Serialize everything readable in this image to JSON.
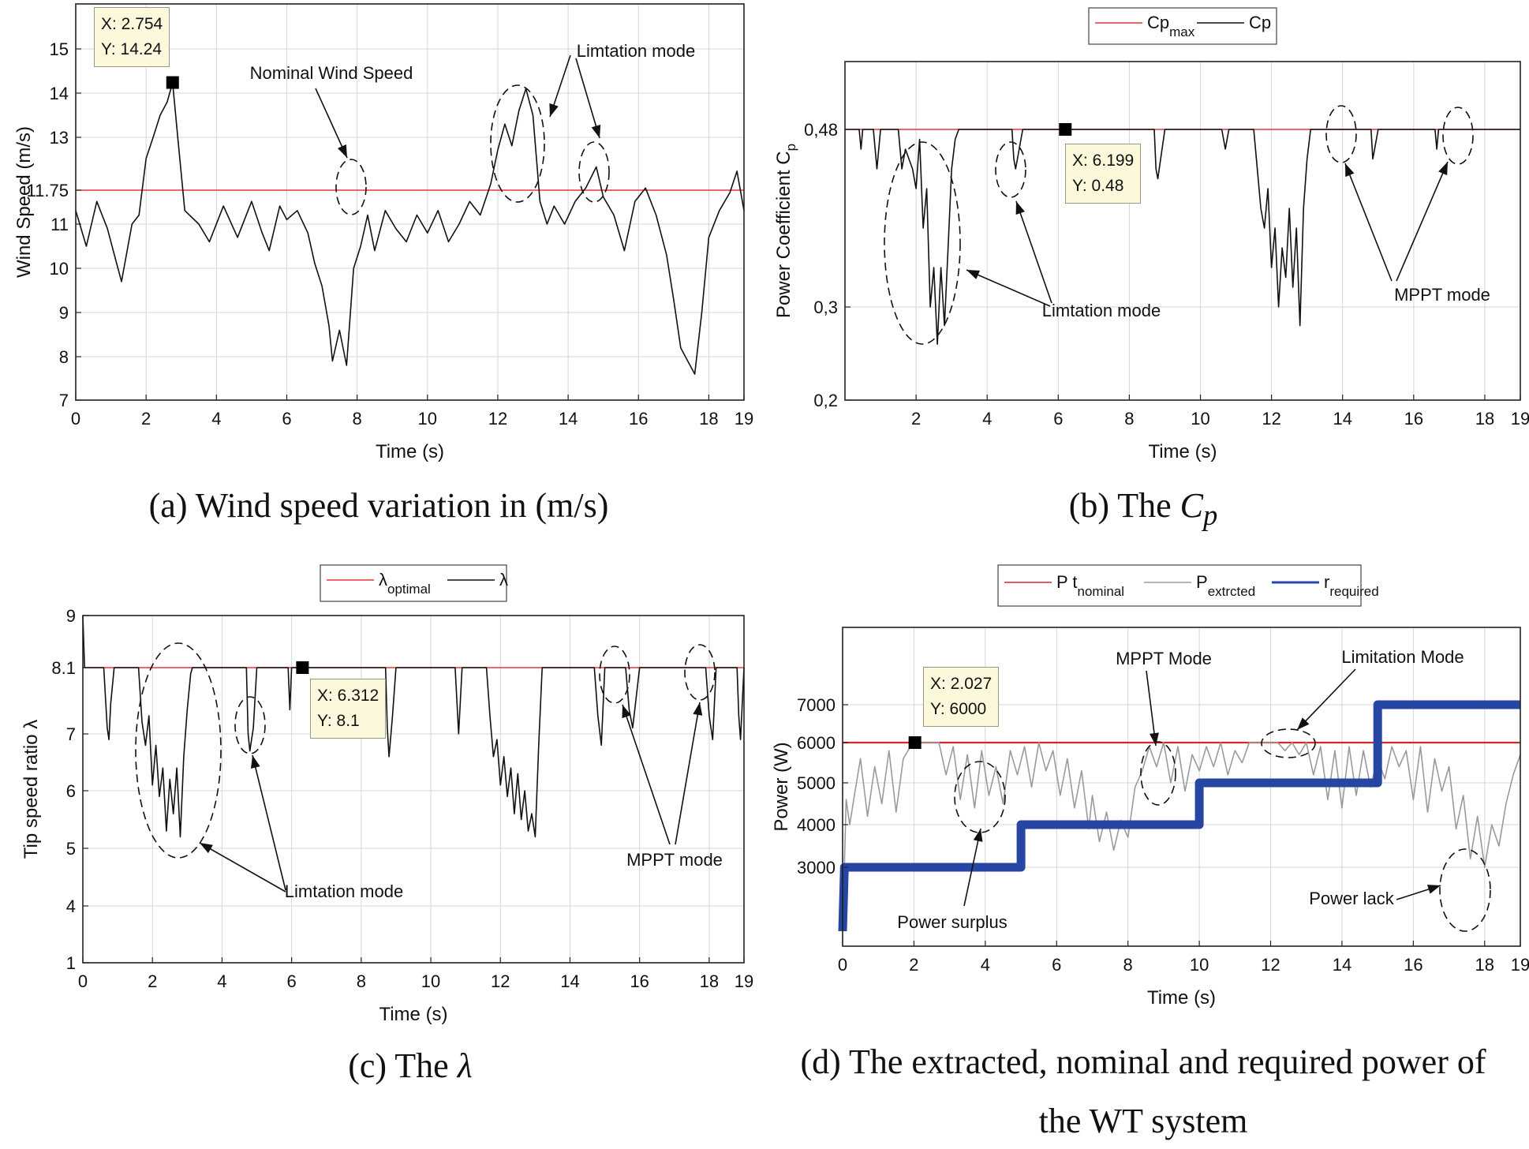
{
  "chart_data": [
    {
      "id": "a",
      "type": "line",
      "caption": "(a) Wind speed variation in (m/s)",
      "xlabel": "Time (s)",
      "ylabel": "Wind Speed (m/s)",
      "xlim": [
        0,
        19
      ],
      "ylim": [
        7,
        16
      ],
      "xticks": [
        "0",
        "2",
        "4",
        "6",
        "8",
        "10",
        "12",
        "14",
        "16",
        "18",
        "19"
      ],
      "yticks": [
        "7",
        "8",
        "9",
        "10",
        "11",
        "11.75",
        "13",
        "14",
        "15"
      ],
      "grid": true,
      "series": [
        {
          "color": "#e8373b",
          "x": [
            0,
            19
          ],
          "y": [
            11.75,
            11.75
          ]
        },
        {
          "color": "#111111",
          "x": [
            0,
            0.3,
            0.6,
            0.9,
            1.2,
            1.3,
            1.6,
            1.8,
            2.0,
            2.2,
            2.4,
            2.6,
            2.754,
            2.9,
            3.1,
            3.5,
            3.8,
            4.2,
            4.6,
            5.0,
            5.3,
            5.5,
            5.8,
            6.0,
            6.3,
            6.6,
            6.8,
            7.0,
            7.2,
            7.3,
            7.5,
            7.7,
            7.9,
            8.1,
            8.3,
            8.5,
            8.8,
            9.1,
            9.4,
            9.7,
            10.0,
            10.3,
            10.6,
            10.9,
            11.2,
            11.5,
            11.8,
            12.0,
            12.2,
            12.4,
            12.6,
            12.8,
            13.0,
            13.2,
            13.4,
            13.6,
            13.9,
            14.2,
            14.5,
            14.8,
            15.0,
            15.3,
            15.6,
            15.9,
            16.2,
            16.5,
            16.8,
            17.0,
            17.2,
            17.4,
            17.6,
            17.8,
            18.0,
            18.3,
            18.6,
            18.8,
            19.0
          ],
          "y": [
            11.3,
            10.5,
            11.5,
            10.9,
            10.0,
            9.7,
            11.0,
            11.2,
            12.5,
            13.0,
            13.5,
            13.8,
            14.24,
            13.0,
            11.3,
            11.0,
            10.6,
            11.4,
            10.7,
            11.5,
            10.8,
            10.4,
            11.4,
            11.1,
            11.3,
            10.8,
            10.1,
            9.6,
            8.7,
            7.9,
            8.6,
            7.8,
            10.0,
            10.5,
            11.2,
            10.4,
            11.3,
            10.9,
            10.6,
            11.2,
            10.8,
            11.3,
            10.6,
            11.0,
            11.5,
            11.2,
            11.9,
            12.7,
            13.3,
            12.8,
            13.6,
            14.1,
            13.5,
            11.5,
            11.0,
            11.4,
            11.0,
            11.5,
            11.8,
            12.3,
            11.6,
            11.2,
            10.4,
            11.5,
            11.8,
            11.2,
            10.3,
            9.3,
            8.2,
            7.9,
            7.6,
            9.0,
            10.7,
            11.3,
            11.7,
            12.2,
            11.3
          ]
        }
      ],
      "annotations": [
        "Nominal Wind Speed",
        "Limtation mode"
      ],
      "datatip": {
        "x": 2.754,
        "y": 14.24,
        "line1": "X: 2.754",
        "line2": "Y: 14.24"
      }
    },
    {
      "id": "b",
      "type": "line",
      "caption_text": "(b) The ",
      "caption_sym": "C",
      "caption_sub": "p",
      "xlabel": "Time (s)",
      "ylabel": "Power Coefficient C",
      "ylabel_sub": "p",
      "xlim": [
        0,
        19
      ],
      "ylim": [
        0.2,
        0.53
      ],
      "xticks": [
        "2",
        "4",
        "6",
        "8",
        "10",
        "12",
        "14",
        "16",
        "18",
        "19"
      ],
      "yticks": [
        "0,2",
        "0,3",
        "0,48"
      ],
      "grid": true,
      "legend": [
        {
          "label": "Cp",
          "sub": "max",
          "color": "#e8373b"
        },
        {
          "label": "Cp",
          "sub": "",
          "color": "#111111"
        }
      ],
      "legend_position": "top",
      "series": [
        {
          "color": "#e8373b",
          "x": [
            0,
            19
          ],
          "y": [
            0.48,
            0.48
          ]
        },
        {
          "color": "#111111",
          "x": [
            0,
            0.4,
            0.45,
            0.5,
            0.6,
            0.8,
            0.9,
            1.0,
            1.5,
            1.6,
            1.7,
            1.9,
            2.0,
            2.1,
            2.2,
            2.3,
            2.4,
            2.5,
            2.6,
            2.7,
            2.8,
            2.9,
            3.0,
            3.1,
            3.2,
            4.0,
            4.7,
            4.75,
            4.8,
            4.9,
            5.0,
            5.1,
            6.2,
            8.7,
            8.75,
            8.8,
            9.0,
            9.1,
            10.6,
            10.7,
            10.8,
            11.5,
            11.6,
            11.7,
            11.8,
            11.9,
            12.0,
            12.1,
            12.2,
            12.3,
            12.4,
            12.5,
            12.6,
            12.7,
            12.8,
            12.9,
            13.0,
            13.1,
            13.2,
            13.5,
            14.8,
            14.85,
            14.9,
            15.0,
            15.1,
            16.6,
            16.65,
            16.7,
            19
          ],
          "y": [
            0.48,
            0.48,
            0.46,
            0.48,
            0.48,
            0.48,
            0.44,
            0.48,
            0.48,
            0.44,
            0.46,
            0.44,
            0.42,
            0.47,
            0.38,
            0.42,
            0.3,
            0.34,
            0.26,
            0.34,
            0.28,
            0.36,
            0.44,
            0.47,
            0.48,
            0.48,
            0.48,
            0.45,
            0.44,
            0.46,
            0.48,
            0.48,
            0.48,
            0.48,
            0.44,
            0.43,
            0.48,
            0.48,
            0.48,
            0.46,
            0.48,
            0.48,
            0.44,
            0.4,
            0.38,
            0.42,
            0.34,
            0.38,
            0.3,
            0.36,
            0.33,
            0.4,
            0.32,
            0.38,
            0.28,
            0.4,
            0.45,
            0.48,
            0.48,
            0.48,
            0.48,
            0.45,
            0.46,
            0.48,
            0.48,
            0.48,
            0.46,
            0.48,
            0.48
          ]
        }
      ],
      "annotations": [
        "Limtation mode",
        "MPPT mode"
      ],
      "datatip": {
        "x": 6.199,
        "y": 0.48,
        "line1": "X: 6.199",
        "line2": "Y: 0.48"
      }
    },
    {
      "id": "c",
      "type": "line",
      "caption_text": "(c) The ",
      "caption_sym": "λ",
      "xlabel": "Time (s)",
      "ylabel": "Tip speed ratio λ",
      "xlim": [
        0,
        19
      ],
      "ylim": [
        1,
        9
      ],
      "xticks": [
        "0",
        "2",
        "4",
        "6",
        "8",
        "10",
        "12",
        "14",
        "16",
        "18",
        "19"
      ],
      "yticks": [
        "1",
        "4",
        "5",
        "6",
        "7",
        "8.1",
        "9"
      ],
      "grid": true,
      "legend": [
        {
          "label": "λ",
          "sub": "optimal",
          "color": "#e8373b"
        },
        {
          "label": "λ",
          "sub": "",
          "color": "#111111"
        }
      ],
      "legend_position": "top",
      "series": [
        {
          "color": "#e8373b",
          "x": [
            0,
            19
          ],
          "y": [
            8.1,
            8.1
          ]
        },
        {
          "color": "#111111",
          "x": [
            0,
            0.05,
            0.1,
            0.2,
            0.6,
            0.7,
            0.75,
            0.8,
            0.9,
            1.0,
            1.6,
            1.7,
            1.8,
            1.9,
            2.0,
            2.1,
            2.2,
            2.3,
            2.4,
            2.5,
            2.6,
            2.7,
            2.8,
            2.9,
            3.0,
            3.1,
            3.15,
            3.2,
            4.7,
            4.75,
            4.8,
            4.9,
            5.0,
            5.1,
            5.9,
            5.95,
            6.0,
            6.3,
            8.7,
            8.75,
            8.8,
            8.9,
            9.0,
            10.7,
            10.8,
            10.9,
            11.6,
            11.7,
            11.8,
            11.9,
            12.0,
            12.1,
            12.2,
            12.3,
            12.4,
            12.5,
            12.6,
            12.7,
            12.8,
            12.9,
            13.0,
            13.1,
            13.2,
            14.7,
            14.8,
            14.9,
            15.0,
            15.6,
            15.7,
            15.8,
            16.0,
            16.1,
            17.9,
            18.0,
            18.1,
            18.2,
            18.8,
            18.85,
            18.9,
            19
          ],
          "y": [
            9,
            8.1,
            8.1,
            8.1,
            8.1,
            7.1,
            6.9,
            7.5,
            8.1,
            8.1,
            8.1,
            7.2,
            6.8,
            7.3,
            6.1,
            6.8,
            5.9,
            6.4,
            5.3,
            6.2,
            5.6,
            6.4,
            5.2,
            6.6,
            7.4,
            8.0,
            8.1,
            8.1,
            8.1,
            7.0,
            6.7,
            7.1,
            8.1,
            8.1,
            8.1,
            7.4,
            8.1,
            8.1,
            8.1,
            7.1,
            6.6,
            7.3,
            8.1,
            8.1,
            7.0,
            8.1,
            8.1,
            7.3,
            6.6,
            6.9,
            6.1,
            6.6,
            5.9,
            6.4,
            5.6,
            6.3,
            5.5,
            6.0,
            5.3,
            5.6,
            5.2,
            6.8,
            8.1,
            8.1,
            7.3,
            6.8,
            8.1,
            8.1,
            7.4,
            7.1,
            8.1,
            8.1,
            8.1,
            7.3,
            6.9,
            8.1,
            8.1,
            7.3,
            6.9,
            8.1
          ]
        }
      ],
      "annotations": [
        "Limtation mode",
        "MPPT mode"
      ],
      "datatip": {
        "x": 6.312,
        "y": 8.1,
        "line1": "X: 6.312",
        "line2": "Y: 8.1"
      }
    },
    {
      "id": "d",
      "type": "line",
      "caption": [
        "(d) The extracted, nominal and required power of",
        "the WT system"
      ],
      "xlabel": "Time (s)",
      "ylabel": "Power (W)",
      "xlim": [
        0,
        19
      ],
      "ylim": [
        1500,
        7900
      ],
      "xticks": [
        "0",
        "2",
        "4",
        "6",
        "8",
        "10",
        "12",
        "14",
        "16",
        "18",
        "19"
      ],
      "yticks": [
        "3000",
        "4000",
        "5000",
        "6000",
        "7000"
      ],
      "grid": true,
      "legend": [
        {
          "label": "P t",
          "sub": "nominal",
          "color": "#d9262b"
        },
        {
          "label": "P",
          "sub": "extrcted",
          "color": "#9a9a9a"
        },
        {
          "label": "r",
          "sub": "required",
          "color": "#2745a3"
        }
      ],
      "legend_position": "top",
      "series": [
        {
          "color": "#d9262b",
          "x": [
            0,
            19
          ],
          "y": [
            6000,
            6000
          ]
        },
        {
          "color": "#9a9a9a",
          "x": [
            0,
            0.1,
            0.2,
            0.35,
            0.5,
            0.7,
            0.9,
            1.1,
            1.3,
            1.5,
            1.7,
            1.9,
            2.0,
            2.1,
            2.3,
            2.5,
            2.7,
            2.9,
            3.1,
            3.3,
            3.5,
            3.7,
            3.9,
            4.1,
            4.3,
            4.5,
            4.7,
            4.9,
            5.1,
            5.3,
            5.5,
            5.7,
            5.9,
            6.1,
            6.3,
            6.5,
            6.7,
            6.9,
            7.0,
            7.2,
            7.4,
            7.6,
            7.8,
            8.0,
            8.2,
            8.4,
            8.6,
            8.8,
            9.0,
            9.2,
            9.4,
            9.6,
            9.8,
            10.0,
            10.2,
            10.4,
            10.6,
            10.8,
            11.0,
            11.2,
            11.4,
            11.6,
            11.8,
            12.0,
            12.2,
            12.4,
            12.6,
            12.8,
            13.0,
            13.2,
            13.4,
            13.6,
            13.8,
            14.0,
            14.2,
            14.4,
            14.6,
            14.8,
            15.0,
            15.2,
            15.4,
            15.6,
            15.8,
            16.0,
            16.2,
            16.4,
            16.6,
            16.8,
            17.0,
            17.2,
            17.4,
            17.6,
            17.8,
            18.0,
            18.2,
            18.4,
            18.6,
            18.8,
            19.0
          ],
          "y": [
            1500,
            4600,
            4000,
            4800,
            5600,
            4200,
            5400,
            4500,
            5800,
            4300,
            5600,
            5900,
            6000,
            6000,
            6000,
            6000,
            6000,
            5200,
            5900,
            4600,
            5700,
            4400,
            5800,
            4700,
            5400,
            4500,
            5800,
            5200,
            5900,
            4900,
            6000,
            5300,
            5800,
            4700,
            5600,
            4400,
            5300,
            3900,
            4700,
            3600,
            4300,
            3400,
            4100,
            3700,
            4900,
            5300,
            5900,
            5400,
            6000,
            5000,
            5900,
            4800,
            5700,
            5300,
            5900,
            5400,
            6000,
            5200,
            5800,
            5500,
            6000,
            6000,
            6000,
            6000,
            6000,
            5800,
            6000,
            5700,
            6000,
            5200,
            5900,
            4600,
            5800,
            4400,
            5900,
            4700,
            5800,
            4900,
            5600,
            5100,
            5900,
            5400,
            5800,
            4600,
            5900,
            4300,
            5600,
            4800,
            5400,
            3900,
            4700,
            3200,
            4200,
            3000,
            4000,
            3500,
            4500,
            5200,
            5700
          ]
        },
        {
          "color": "#2745a3",
          "x": [
            0,
            0.05,
            5,
            5,
            10,
            10,
            15,
            15,
            19
          ],
          "y": [
            1500,
            3000,
            3000,
            4000,
            4000,
            5000,
            5000,
            7000,
            7000
          ]
        }
      ],
      "annotations": [
        "MPPT Mode",
        "Limitation Mode",
        "Power  surplus",
        "Power lack"
      ],
      "datatip": {
        "x": 2.027,
        "y": 6000,
        "line1": "X: 2.027",
        "line2": "Y: 6000"
      }
    }
  ]
}
